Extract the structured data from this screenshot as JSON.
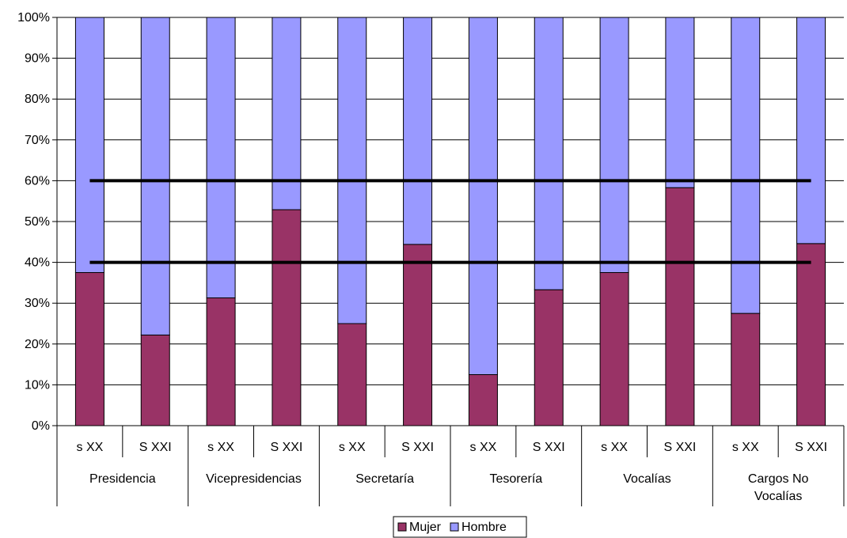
{
  "chart_data": {
    "type": "bar",
    "stacked": "percent",
    "title": "",
    "xlabel": "",
    "ylabel": "",
    "ylim": [
      0,
      100
    ],
    "y_ticks": [
      "0%",
      "10%",
      "20%",
      "30%",
      "40%",
      "50%",
      "60%",
      "70%",
      "80%",
      "90%",
      "100%"
    ],
    "grid": true,
    "legend_position": "bottom",
    "groups": [
      {
        "name": "Presidencia",
        "categories": [
          "s XX",
          "S XXI"
        ]
      },
      {
        "name": "Vicepresidencias",
        "categories": [
          "s XX",
          "S XXI"
        ]
      },
      {
        "name": "Secretaría",
        "categories": [
          "s XX",
          "S XXI"
        ]
      },
      {
        "name": "Tesorería",
        "categories": [
          "s XX",
          "S XXI"
        ]
      },
      {
        "name": "Vocalías",
        "categories": [
          "s XX",
          "S XXI"
        ]
      },
      {
        "name": "Cargos No Vocalías",
        "categories": [
          "s XX",
          "S XXI"
        ]
      }
    ],
    "series": [
      {
        "name": "Mujer",
        "color": "#993366",
        "values": [
          37.5,
          22.2,
          31.3,
          52.9,
          25.0,
          44.4,
          12.5,
          33.3,
          37.5,
          58.3,
          27.5,
          44.6
        ]
      },
      {
        "name": "Hombre",
        "color": "#9999FF",
        "values": [
          62.5,
          77.8,
          68.7,
          47.1,
          75.0,
          55.6,
          87.5,
          66.7,
          62.5,
          41.7,
          72.5,
          55.4
        ]
      }
    ],
    "reference_lines": [
      40,
      60
    ]
  }
}
